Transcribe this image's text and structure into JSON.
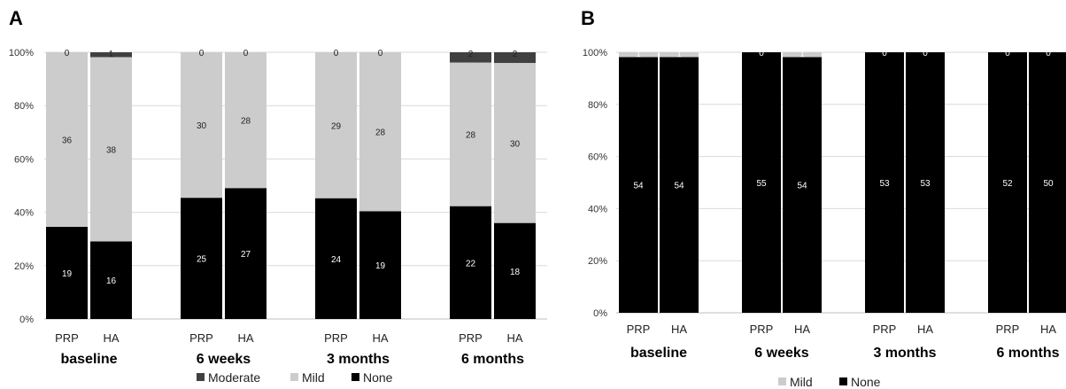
{
  "chart_data": [
    {
      "type": "bar",
      "stacked": "percent",
      "panel_label": "A",
      "ylim": [
        0,
        100
      ],
      "y_ticks": [
        "0%",
        "20%",
        "40%",
        "60%",
        "80%",
        "100%"
      ],
      "categories": [
        "PRP",
        "HA",
        "PRP",
        "HA",
        "PRP",
        "HA",
        "PRP",
        "HA"
      ],
      "groups": [
        "baseline",
        "6 weeks",
        "3 months",
        "6 months"
      ],
      "series": [
        {
          "name": "None",
          "color": "#000000",
          "label_color": "#ffffff",
          "values": [
            19,
            16,
            25,
            27,
            24,
            19,
            22,
            18
          ]
        },
        {
          "name": "Mild",
          "color": "#cccccc",
          "label_color": "#222222",
          "values": [
            36,
            38,
            30,
            28,
            29,
            28,
            28,
            30
          ]
        },
        {
          "name": "Moderate",
          "color": "#404040",
          "label_color": "#222222",
          "values": [
            0,
            1,
            0,
            0,
            0,
            0,
            2,
            2
          ]
        }
      ],
      "legend": [
        "Moderate",
        "Mild",
        "None"
      ],
      "legend_position": "bottom",
      "grid": true
    },
    {
      "type": "bar",
      "stacked": "percent",
      "panel_label": "B",
      "ylim": [
        0,
        100
      ],
      "y_ticks": [
        "0%",
        "20%",
        "40%",
        "60%",
        "80%",
        "100%"
      ],
      "categories": [
        "PRP",
        "HA",
        "PRP",
        "HA",
        "PRP",
        "HA",
        "PRP",
        "HA"
      ],
      "groups": [
        "baseline",
        "6 weeks",
        "3 months",
        "6 months"
      ],
      "series": [
        {
          "name": "None",
          "color": "#000000",
          "label_color": "#ffffff",
          "values": [
            54,
            54,
            55,
            54,
            53,
            53,
            52,
            50
          ]
        },
        {
          "name": "Mild",
          "color": "#cccccc",
          "label_color": "#ffffff",
          "values": [
            1,
            1,
            0,
            1,
            0,
            0,
            0,
            0
          ]
        }
      ],
      "legend": [
        "Mild",
        "None"
      ],
      "legend_position": "bottom",
      "grid": true
    }
  ]
}
